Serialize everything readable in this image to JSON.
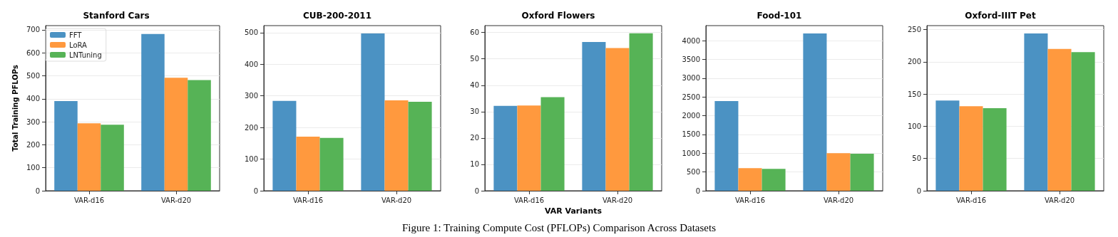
{
  "chart_data": [
    {
      "type": "bar",
      "title": "Stanford Cars",
      "ylabel": "Total Training PFLOPs",
      "categories": [
        "VAR-d16",
        "VAR-d20"
      ],
      "ylim": [
        0,
        718
      ],
      "yticks": [
        0,
        100,
        200,
        300,
        400,
        500,
        600,
        700
      ],
      "grid": "y",
      "legend": "top left",
      "series": [
        {
          "name": "FFT",
          "color": "#4b92c3",
          "values": [
            390,
            682
          ]
        },
        {
          "name": "LoRA",
          "color": "#ff993e",
          "values": [
            293,
            491
          ]
        },
        {
          "name": "LNTuning",
          "color": "#56b356",
          "values": [
            287,
            481
          ]
        }
      ]
    },
    {
      "type": "bar",
      "title": "CUB-200-2011",
      "categories": [
        "VAR-d16",
        "VAR-d20"
      ],
      "ylim": [
        0,
        522
      ],
      "yticks": [
        0,
        100,
        200,
        300,
        400,
        500
      ],
      "grid": "y",
      "series": [
        {
          "color": "#4b92c3",
          "values": [
            284,
            497
          ]
        },
        {
          "color": "#ff993e",
          "values": [
            171,
            286
          ]
        },
        {
          "color": "#56b356",
          "values": [
            167,
            281
          ]
        }
      ]
    },
    {
      "type": "bar",
      "title": "Oxford Flowers",
      "xlabel": "VAR Variants",
      "categories": [
        "VAR-d16",
        "VAR-d20"
      ],
      "ylim": [
        0,
        62.6
      ],
      "yticks": [
        0,
        10,
        20,
        30,
        40,
        50,
        60
      ],
      "grid": "y",
      "annotations": [
        "Figure 1: Training Compute Cost (PFLOPs) Comparison Across Datasets"
      ],
      "series": [
        {
          "color": "#4b92c3",
          "values": [
            32.2,
            56.4
          ]
        },
        {
          "color": "#ff993e",
          "values": [
            32.3,
            54.1
          ]
        },
        {
          "color": "#56b356",
          "values": [
            35.5,
            59.7
          ]
        }
      ]
    },
    {
      "type": "bar",
      "title": "Food-101",
      "categories": [
        "VAR-d16",
        "VAR-d20"
      ],
      "ylim": [
        0,
        4400
      ],
      "yticks": [
        0,
        500,
        1000,
        1500,
        2000,
        2500,
        3000,
        3500,
        4000
      ],
      "grid": "y",
      "series": [
        {
          "color": "#4b92c3",
          "values": [
            2390,
            4190
          ]
        },
        {
          "color": "#ff993e",
          "values": [
            600,
            1000
          ]
        },
        {
          "color": "#56b356",
          "values": [
            585,
            985
          ]
        }
      ]
    },
    {
      "type": "bar",
      "title": "Oxford-IIIT Pet",
      "categories": [
        "VAR-d16",
        "VAR-d20"
      ],
      "ylim": [
        0,
        256
      ],
      "yticks": [
        0,
        50,
        100,
        150,
        200,
        250
      ],
      "grid": "y",
      "series": [
        {
          "color": "#4b92c3",
          "values": [
            140,
            244
          ]
        },
        {
          "color": "#ff993e",
          "values": [
            131,
            220
          ]
        },
        {
          "color": "#56b356",
          "values": [
            128,
            215
          ]
        }
      ]
    }
  ]
}
